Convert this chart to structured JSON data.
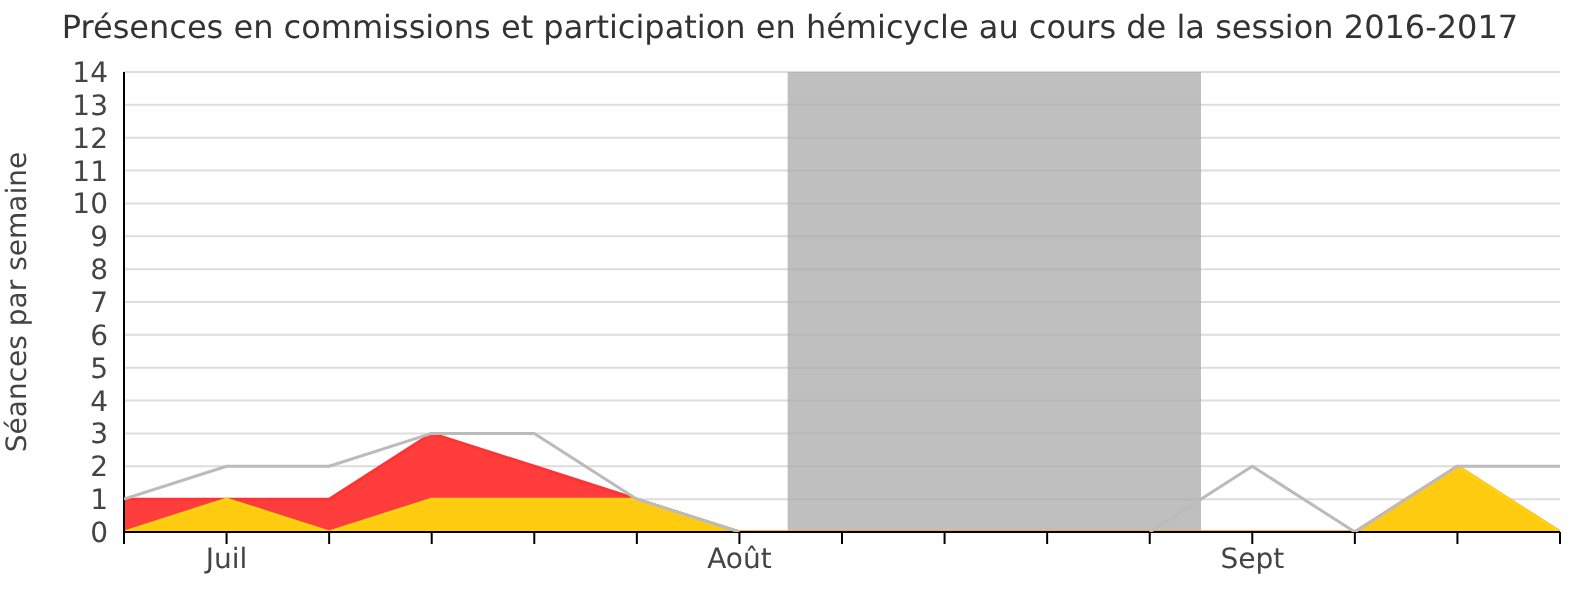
{
  "chart_data": {
    "type": "area",
    "title": "Présences en commissions et participation en hémicycle au cours de la session 2016-2017",
    "ylabel": "Séances par semaine",
    "categories": [
      null,
      "Juil",
      null,
      null,
      null,
      null,
      "Août",
      null,
      null,
      null,
      null,
      "Sept",
      null,
      null,
      null
    ],
    "series": [
      {
        "type": "line",
        "color": "#bbbbbb",
        "values": [
          1,
          2,
          2,
          3,
          3,
          1,
          0,
          null,
          null,
          null,
          0,
          2,
          0,
          2,
          2
        ]
      },
      {
        "color": "#ff3333",
        "values": [
          1,
          1,
          1,
          3,
          2,
          1,
          0,
          0,
          0,
          0,
          0,
          0,
          0,
          2,
          0
        ]
      },
      {
        "color": "#ffd30f",
        "values": [
          0,
          1,
          0,
          1,
          1,
          1,
          0,
          0,
          0,
          0,
          0,
          0,
          0,
          2,
          0
        ]
      }
    ],
    "ylim": [
      0,
      14
    ],
    "yticks": [
      0,
      1,
      2,
      3,
      4,
      5,
      6,
      7,
      8,
      9,
      10,
      11,
      12,
      13,
      14
    ],
    "grid": "y"
  }
}
